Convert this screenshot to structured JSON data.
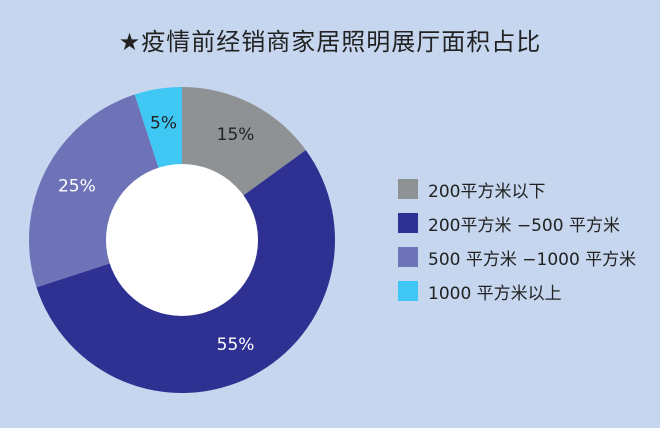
{
  "chart_data": {
    "type": "pie",
    "title": "★疫情前经销商家居照明展厅面积占比",
    "categories": [
      "200平方米以下",
      "200平方米 −500 平方米",
      "500 平方米 −1000 平方米",
      "1000 平方米以上"
    ],
    "values": [
      15,
      55,
      25,
      5
    ],
    "data_labels": [
      "15%",
      "55%",
      "25%",
      "5%"
    ],
    "colors": [
      "#8f9294",
      "#2e3192",
      "#6e73b8",
      "#40c8f4"
    ],
    "legend_position": "right"
  }
}
